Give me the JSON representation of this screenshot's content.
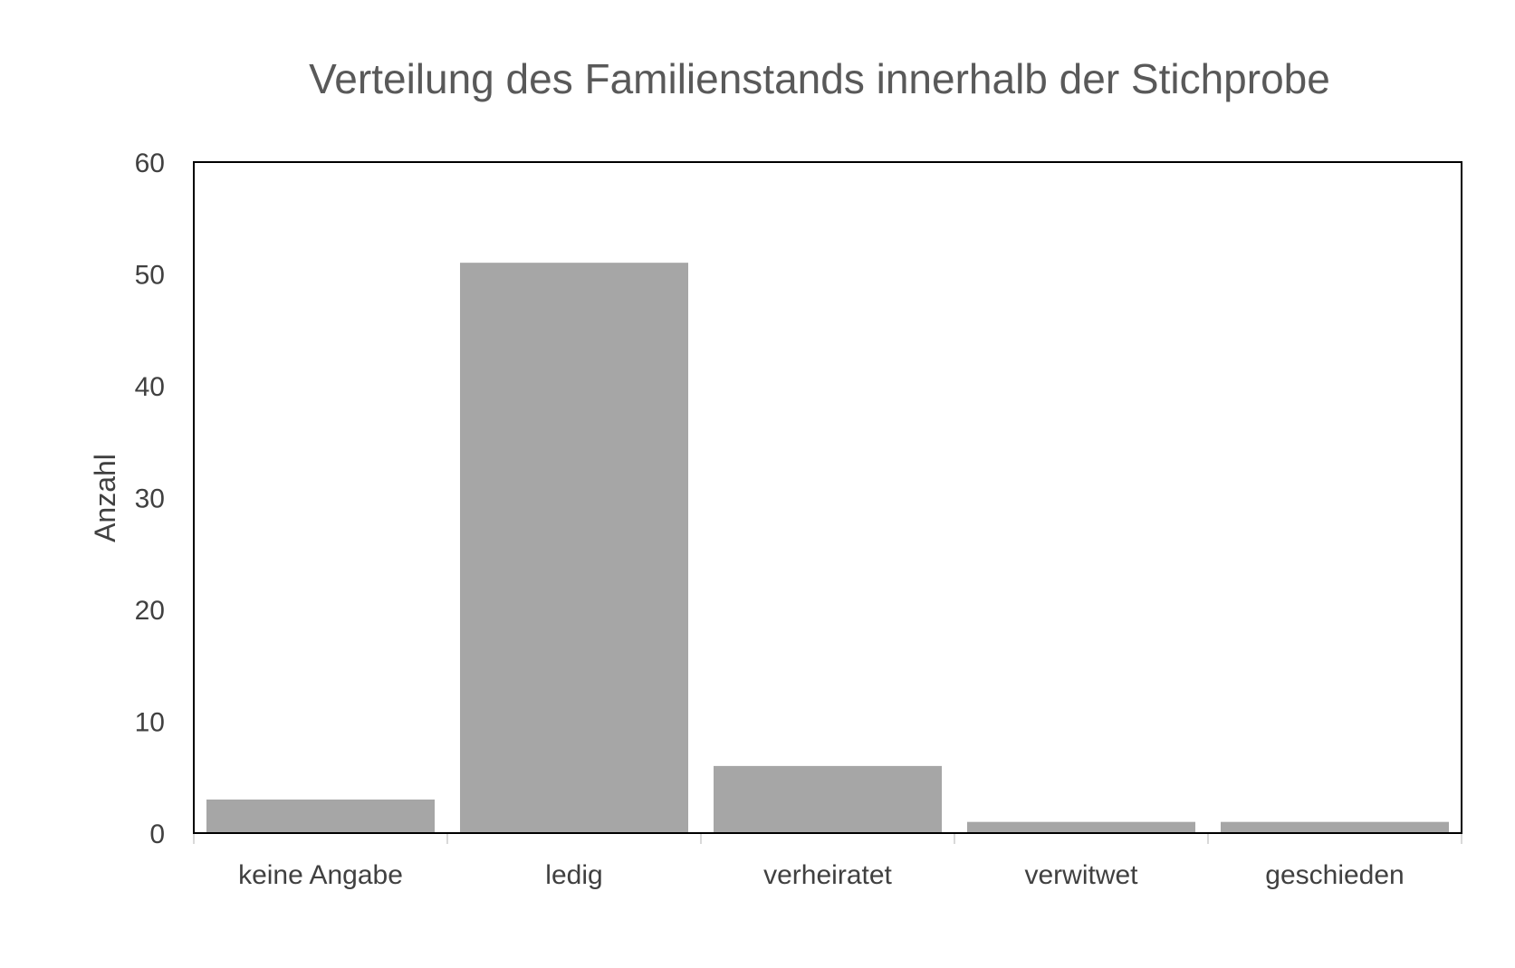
{
  "chart_data": {
    "type": "bar",
    "title": "Verteilung des Familienstands innerhalb der Stichprobe",
    "xlabel": "",
    "ylabel": "Anzahl",
    "categories": [
      "keine Angabe",
      "ledig",
      "verheiratet",
      "verwitwet",
      "geschieden"
    ],
    "values": [
      3,
      51,
      6,
      1,
      1
    ],
    "ylim": [
      0,
      60
    ],
    "yticks": [
      "0",
      "10",
      "20",
      "30",
      "40",
      "50",
      "60"
    ],
    "grid": false,
    "legend": "none",
    "colors": {
      "bar": "#a6a6a6",
      "frame": "#000000",
      "baseline": "#d9d9d9",
      "title": "#595959",
      "text": "#404040"
    }
  }
}
